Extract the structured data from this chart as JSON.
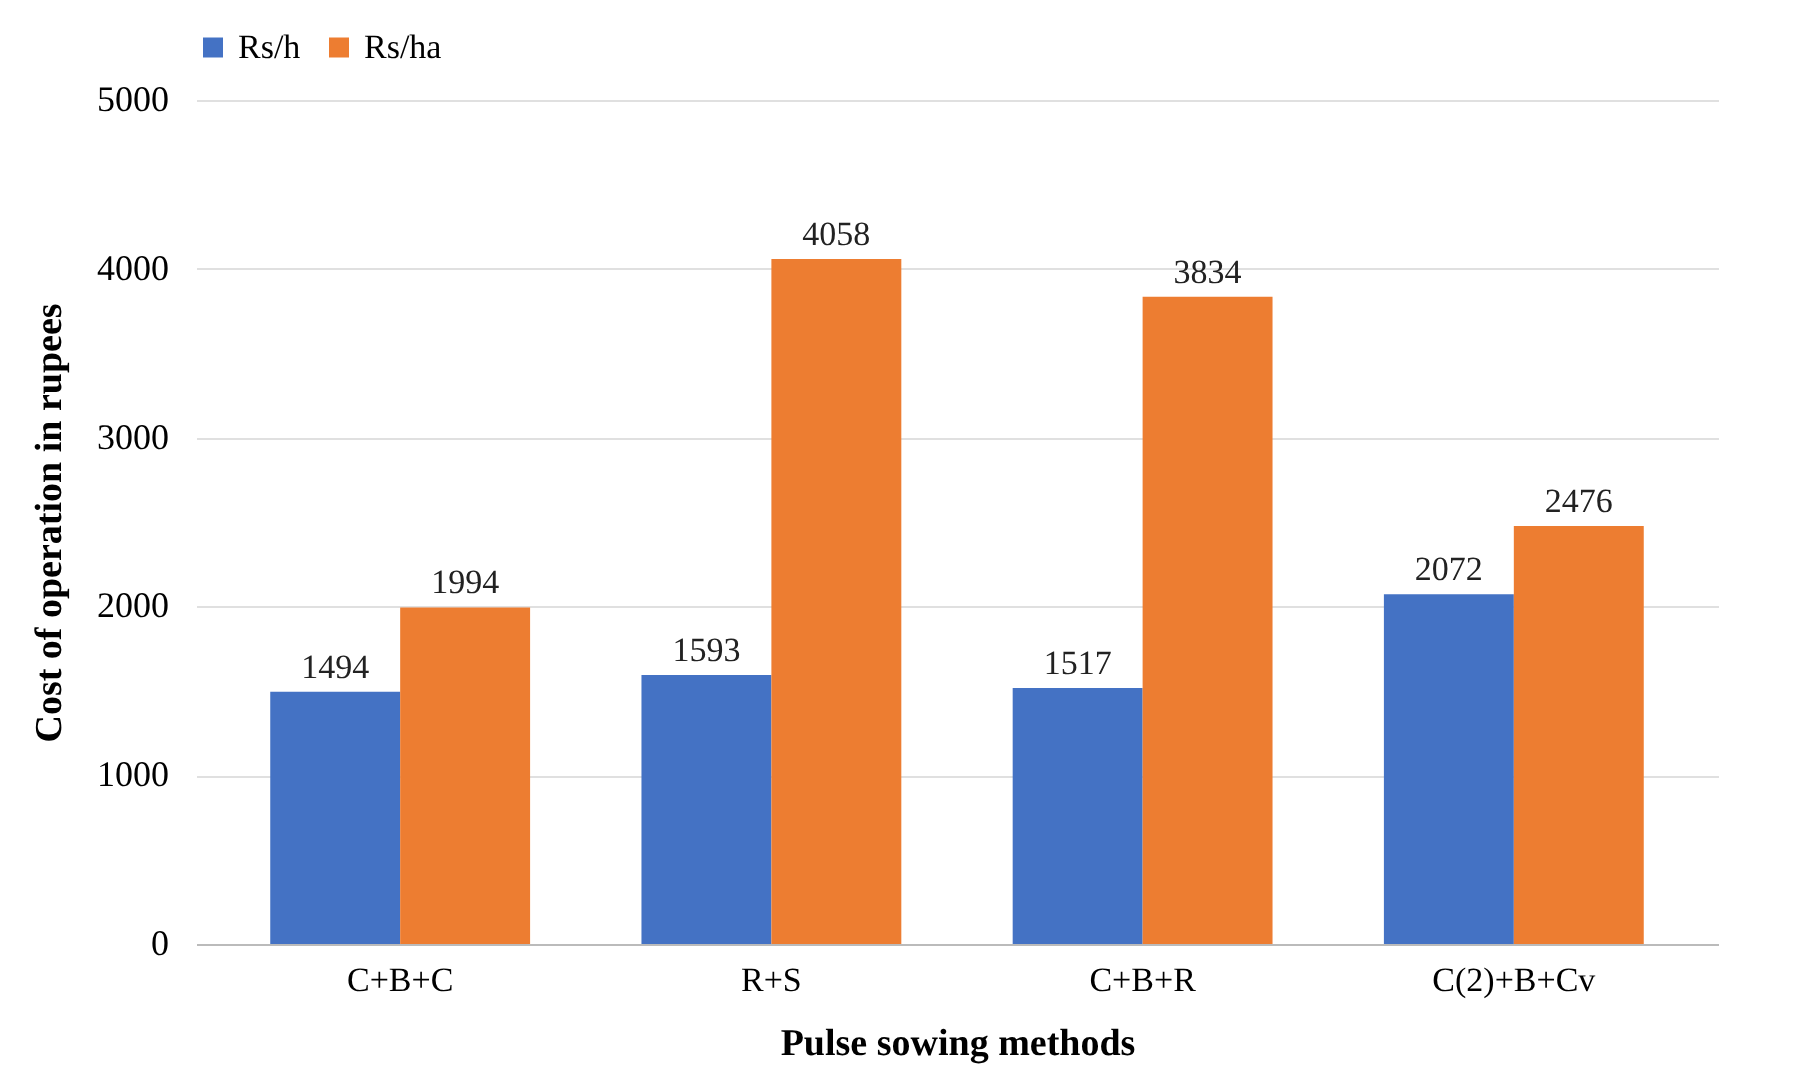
{
  "chart_data": {
    "type": "bar",
    "xlabel": "Pulse sowing methods",
    "ylabel": "Cost of operation in rupees",
    "categories": [
      "C+B+C",
      "R+S",
      "C+B+R",
      "C(2)+B+Cv"
    ],
    "series": [
      {
        "name": "Rs/h",
        "color": "#4472c4",
        "values": [
          1494,
          1593,
          1517,
          2072
        ]
      },
      {
        "name": "Rs/ha",
        "color": "#ed7d31",
        "values": [
          1994,
          4058,
          3834,
          2476
        ]
      }
    ],
    "ylim": [
      0,
      5000
    ],
    "yticks": [
      0,
      1000,
      2000,
      3000,
      4000,
      5000
    ],
    "grid": "y",
    "legend": "top",
    "data_labels": true
  }
}
